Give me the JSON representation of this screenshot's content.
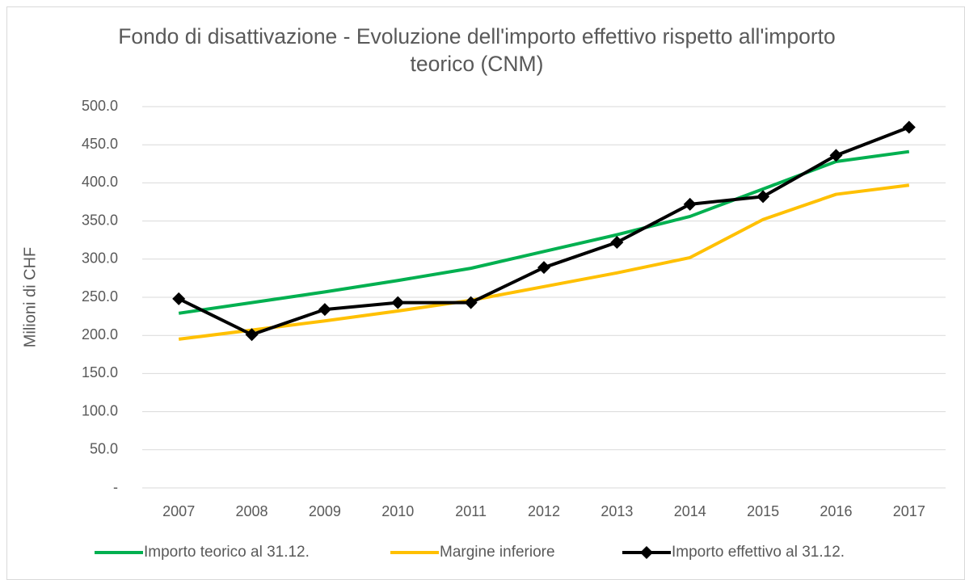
{
  "chart_data": {
    "type": "line",
    "title": "Fondo di disattivazione - Evoluzione dell'importo effettivo rispetto all'importo teorico (CNM)",
    "y_label": "Milioni di CHF",
    "categories": [
      "2007",
      "2008",
      "2009",
      "2010",
      "2011",
      "2012",
      "2013",
      "2014",
      "2015",
      "2016",
      "2017"
    ],
    "series": [
      {
        "name": "Importo teorico al 31.12.",
        "color": "#00b050",
        "values": [
          229,
          243,
          257,
          272,
          288,
          310,
          332,
          356,
          392,
          428,
          441
        ]
      },
      {
        "name": "Margine inferiore",
        "color": "#ffc000",
        "values": [
          195,
          207,
          219,
          232,
          246,
          264,
          282,
          302,
          352,
          385,
          397
        ]
      },
      {
        "name": "Importo effettivo al 31.12.",
        "color": "#000000",
        "marker": "diamond",
        "values": [
          248,
          201,
          234,
          243,
          243,
          289,
          322,
          372,
          382,
          436,
          473
        ]
      }
    ],
    "ylim": [
      0,
      500
    ],
    "yticks": [
      {
        "value": 0,
        "label": "-"
      },
      {
        "value": 50,
        "label": "50.0"
      },
      {
        "value": 100,
        "label": "100.0"
      },
      {
        "value": 150,
        "label": "150.0"
      },
      {
        "value": 200,
        "label": "200.0"
      },
      {
        "value": 250,
        "label": "250.0"
      },
      {
        "value": 300,
        "label": "300.0"
      },
      {
        "value": 350,
        "label": "350.0"
      },
      {
        "value": 400,
        "label": "400.0"
      },
      {
        "value": 450,
        "label": "450.0"
      },
      {
        "value": 500,
        "label": "500.0"
      }
    ],
    "grid": true,
    "legend": "bottom"
  }
}
